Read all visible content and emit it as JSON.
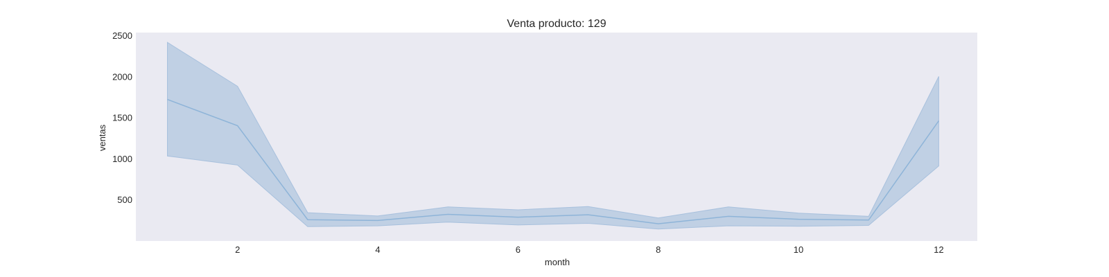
{
  "chart_data": {
    "type": "line",
    "title": "Venta producto: 129",
    "xlabel": "month",
    "ylabel": "ventas",
    "x": [
      1,
      2,
      3,
      4,
      5,
      6,
      7,
      8,
      9,
      10,
      11,
      12
    ],
    "series": [
      {
        "values": [
          1725,
          1405,
          260,
          250,
          325,
          290,
          320,
          210,
          300,
          265,
          255,
          1465
        ],
        "ci_low": [
          1035,
          925,
          175,
          185,
          230,
          195,
          215,
          145,
          185,
          180,
          190,
          915
        ],
        "ci_high": [
          2420,
          1885,
          345,
          305,
          415,
          380,
          420,
          280,
          415,
          340,
          300,
          2005
        ],
        "color": "#8eb4d8",
        "band_color": "#a3bedb"
      }
    ],
    "x_ticks": [
      2,
      4,
      6,
      8,
      10,
      12
    ],
    "y_ticks": [
      500,
      1000,
      1500,
      2000,
      2500
    ],
    "xlim": [
      0.55,
      12.55
    ],
    "ylim": [
      0,
      2540
    ],
    "grid": false,
    "plot_background": "#eaeaf2"
  }
}
